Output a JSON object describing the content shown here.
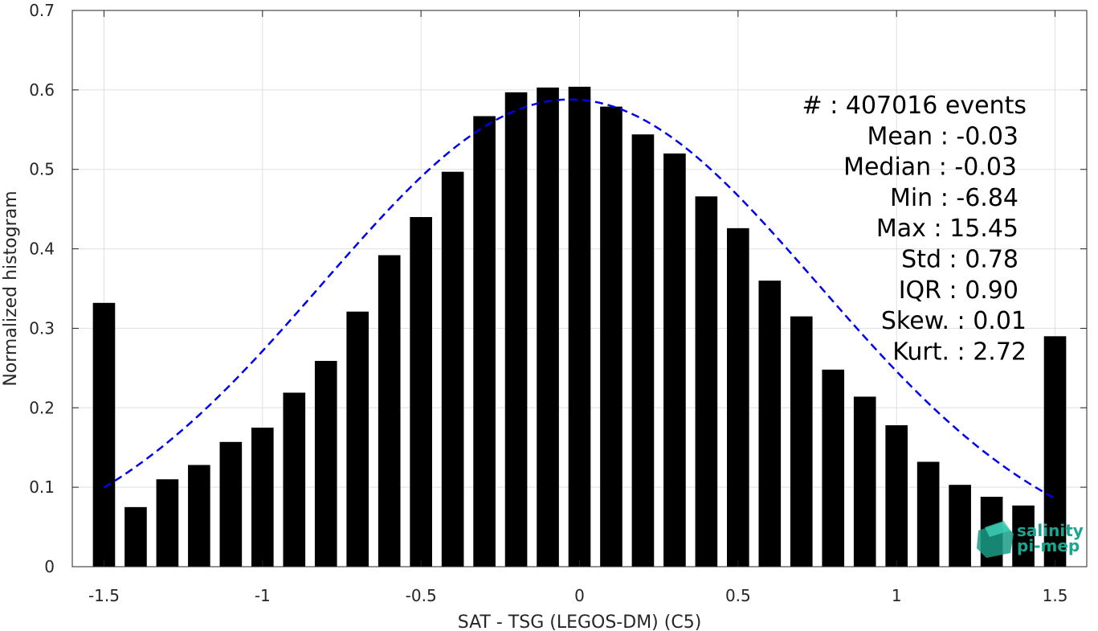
{
  "chart_data": {
    "type": "bar",
    "xlabel": "SAT - TSG (LEGOS-DM) (C5)",
    "ylabel": "Normalized histogram",
    "xlim": [
      -1.6,
      1.6
    ],
    "ylim": [
      0,
      0.7
    ],
    "x_ticks": [
      -1.5,
      -1,
      -0.5,
      0,
      0.5,
      1,
      1.5
    ],
    "x_tick_labels": [
      "-1.5",
      "-1",
      "-0.5",
      "0",
      "0.5",
      "1",
      "1.5"
    ],
    "y_ticks": [
      0,
      0.1,
      0.2,
      0.3,
      0.4,
      0.5,
      0.6,
      0.7
    ],
    "y_tick_labels": [
      "0",
      "0.1",
      "0.2",
      "0.3",
      "0.4",
      "0.5",
      "0.6",
      "0.7"
    ],
    "grid": true,
    "bar_color": "#000000",
    "bar_width": 0.07,
    "bins": {
      "x": [
        -1.5,
        -1.4,
        -1.3,
        -1.2,
        -1.1,
        -1.0,
        -0.9,
        -0.8,
        -0.7,
        -0.6,
        -0.5,
        -0.4,
        -0.3,
        -0.2,
        -0.1,
        0.0,
        0.1,
        0.2,
        0.3,
        0.4,
        0.5,
        0.6,
        0.7,
        0.8,
        0.9,
        1.0,
        1.1,
        1.2,
        1.3,
        1.4,
        1.5
      ],
      "values": [
        0.332,
        0.075,
        0.11,
        0.128,
        0.157,
        0.175,
        0.219,
        0.259,
        0.321,
        0.392,
        0.44,
        0.497,
        0.567,
        0.597,
        0.603,
        0.604,
        0.579,
        0.544,
        0.52,
        0.466,
        0.426,
        0.36,
        0.315,
        0.248,
        0.214,
        0.178,
        0.132,
        0.103,
        0.088,
        0.077,
        0.29
      ]
    },
    "fit_curve": {
      "style": "dashed",
      "color": "#0000ee",
      "mean": -0.03,
      "std": 0.78,
      "peak": 0.588,
      "x_range": [
        -1.5,
        1.5
      ]
    },
    "stats": [
      "#  : 407016 events",
      "Mean : -0.03",
      "Median : -0.03",
      "Min : -6.84",
      "Max : 15.45",
      "Std : 0.78",
      "IQR : 0.90",
      "Skew. : 0.01",
      "Kurt. : 2.72"
    ]
  },
  "logo": {
    "line1": "salinity",
    "line2": "pi-mep",
    "color": "#1aa58f"
  }
}
